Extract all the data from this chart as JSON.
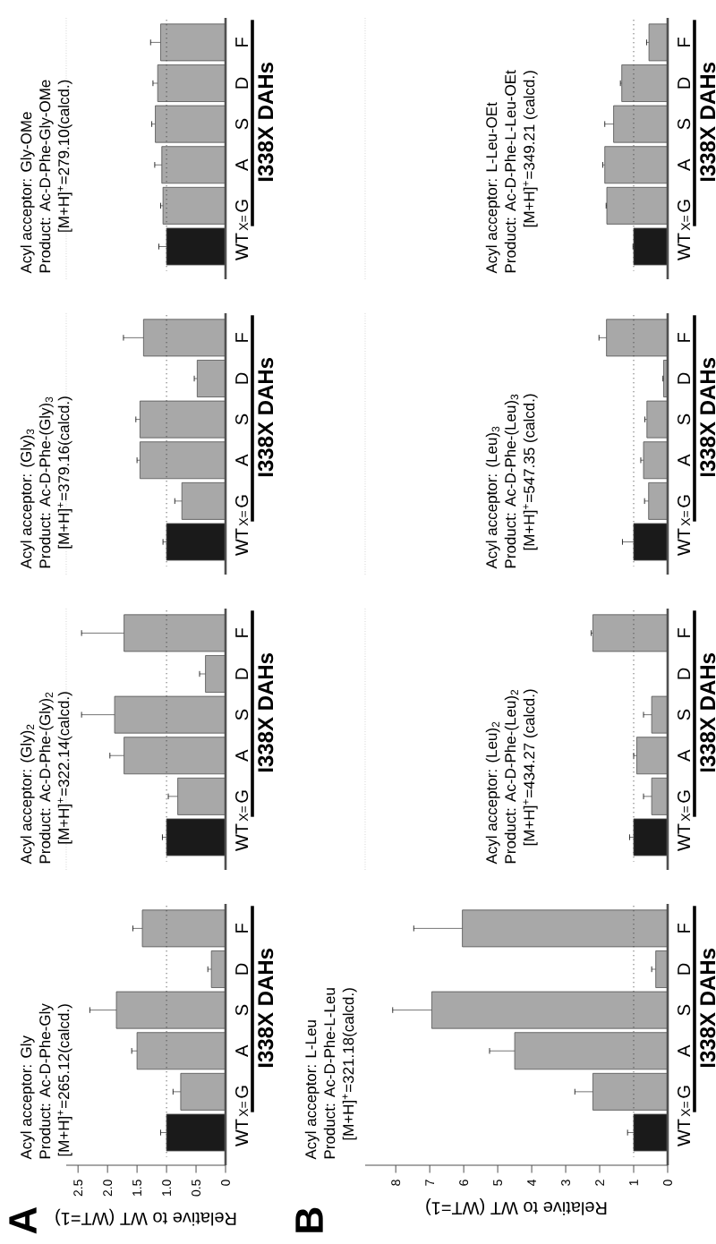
{
  "chart_data": [
    {
      "type": "bar",
      "orientation": "horizontal",
      "title": "Acyl acceptor: Gly",
      "subtitle": "Product: Ac-D-Phe-Gly",
      "ylabel": "I338X DAHs",
      "xlabel": "Relative to WT (WT=1)",
      "annotations": [
        "[M+H]$^{+}$=265.12(calcd.)",
        "X=",
        "A"
      ],
      "categories": [
        "F",
        "D",
        "S",
        "A",
        "G",
        "WT"
      ],
      "values": [
        1.41,
        0.24,
        1.85,
        1.5,
        0.76,
        1.0
      ],
      "errors": [
        0.16,
        0.06,
        0.45,
        0.09,
        0.13,
        0.1
      ],
      "colors": [
        "#a8a8a8",
        "#a8a8a8",
        "#a8a8a8",
        "#a8a8a8",
        "#a8a8a8",
        "#1a1a1a"
      ],
      "xlim": [
        2.7,
        0
      ],
      "xticks": [
        {
          "value": 0,
          "label": "0"
        },
        {
          "value": 0.5,
          "label": "0.5"
        },
        {
          "value": 1,
          "label": "1.0"
        },
        {
          "value": 1.5,
          "label": "1.5"
        },
        {
          "value": 2,
          "label": "2.0"
        },
        {
          "value": 2.5,
          "label": "2.5"
        }
      ],
      "ref_lines": [
        {
          "axis": "x",
          "value": 1,
          "line_style": "dotted",
          "color": "#333333"
        }
      ]
    },
    {
      "type": "bar",
      "orientation": "horizontal",
      "title": "Acyl acceptor: (Gly)$_{2}$",
      "subtitle": "Product: Ac-D-Phe-(Gly)$_{2}$",
      "ylabel": "I338X DAHs",
      "annotations": [
        "[M+H]$^{+}$=322.14(calcd.)",
        "X="
      ],
      "categories": [
        "F",
        "D",
        "S",
        "A",
        "G",
        "WT"
      ],
      "values": [
        1.72,
        0.34,
        1.88,
        1.72,
        0.81,
        1.0
      ],
      "errors": [
        0.72,
        0.1,
        0.56,
        0.24,
        0.16,
        0.07
      ],
      "colors": [
        "#a8a8a8",
        "#a8a8a8",
        "#a8a8a8",
        "#a8a8a8",
        "#a8a8a8",
        "#1a1a1a"
      ],
      "xlim": [
        2.7,
        0
      ],
      "tick_labels": "y",
      "ref_lines": [
        {
          "axis": "x",
          "value": 1,
          "line_style": "dotted",
          "color": "#333333"
        }
      ]
    },
    {
      "type": "bar",
      "orientation": "horizontal",
      "title": "Acyl acceptor: (Gly)$_{3}$",
      "subtitle": "Product: Ac-D-Phe-(Gly)$_{3}$",
      "ylabel": "I338X DAHs",
      "annotations": [
        "[M+H]$^{+}$=379.16(calcd.)",
        "X="
      ],
      "categories": [
        "F",
        "D",
        "S",
        "A",
        "G",
        "WT"
      ],
      "values": [
        1.39,
        0.48,
        1.45,
        1.45,
        0.74,
        1.0
      ],
      "errors": [
        0.34,
        0.05,
        0.07,
        0.05,
        0.12,
        0.06
      ],
      "colors": [
        "#a8a8a8",
        "#a8a8a8",
        "#a8a8a8",
        "#a8a8a8",
        "#a8a8a8",
        "#1a1a1a"
      ],
      "xlim": [
        2.7,
        0
      ],
      "tick_labels": "y",
      "ref_lines": [
        {
          "axis": "x",
          "value": 1,
          "line_style": "dotted",
          "color": "#333333"
        }
      ]
    },
    {
      "type": "bar",
      "orientation": "horizontal",
      "title": "Acyl acceptor: Gly-OMe",
      "subtitle": "Product: Ac-D-Phe-Gly-OMe",
      "ylabel": "I338X DAHs",
      "annotations": [
        "[M+H]$^{+}$=279.10(calcd.)",
        "X="
      ],
      "categories": [
        "F",
        "D",
        "S",
        "A",
        "G",
        "WT"
      ],
      "values": [
        1.1,
        1.15,
        1.19,
        1.08,
        1.06,
        1.0
      ],
      "errors": [
        0.17,
        0.08,
        0.06,
        0.12,
        0.04,
        0.13
      ],
      "colors": [
        "#a8a8a8",
        "#a8a8a8",
        "#a8a8a8",
        "#a8a8a8",
        "#a8a8a8",
        "#1a1a1a"
      ],
      "xlim": [
        2.7,
        0
      ],
      "tick_labels": "y",
      "ref_lines": [
        {
          "axis": "x",
          "value": 1,
          "line_style": "dotted",
          "color": "#333333"
        }
      ]
    },
    {
      "type": "bar",
      "orientation": "horizontal",
      "title": "Acyl acceptor: L-Leu",
      "subtitle": "Product: Ac-D-Phe-L-Leu",
      "ylabel": "I338X DAHs",
      "xlabel": "Relative to WT (WT=1)",
      "annotations": [
        "[M+H]$^{+}$=321.18(calcd.)",
        "X=",
        "B"
      ],
      "categories": [
        "F",
        "D",
        "S",
        "A",
        "G",
        "WT"
      ],
      "values": [
        6.04,
        0.35,
        6.94,
        4.5,
        2.2,
        1.0
      ],
      "errors": [
        1.43,
        0.12,
        1.15,
        0.74,
        0.53,
        0.18
      ],
      "colors": [
        "#a8a8a8",
        "#a8a8a8",
        "#a8a8a8",
        "#a8a8a8",
        "#a8a8a8",
        "#1a1a1a"
      ],
      "xlim": [
        8.9,
        0
      ],
      "xticks": [
        0,
        1,
        2,
        3,
        4,
        5,
        6,
        7,
        8
      ],
      "ref_lines": [
        {
          "axis": "x",
          "value": 1,
          "line_style": "dotted",
          "color": "#333333"
        }
      ]
    },
    {
      "type": "bar",
      "orientation": "horizontal",
      "title": "Acyl acceptor: (Leu)$_{2}$",
      "subtitle": "Product: Ac-D-Phe-(Leu)$_{2}$",
      "ylabel": "I338X DAHs",
      "annotations": [
        "[M+H]$^{+}$=434.27 (calcd.)",
        "X="
      ],
      "categories": [
        "F",
        "D",
        "S",
        "A",
        "G",
        "WT"
      ],
      "values": [
        2.2,
        0,
        0.47,
        0.91,
        0.47,
        1.0
      ],
      "errors": [
        0.05,
        null,
        0.24,
        0.09,
        0.24,
        0.12
      ],
      "colors": [
        "#a8a8a8",
        "#a8a8a8",
        "#a8a8a8",
        "#a8a8a8",
        "#a8a8a8",
        "#1a1a1a"
      ],
      "xlim": [
        8.9,
        0
      ],
      "tick_labels": "y",
      "ref_lines": [
        {
          "axis": "x",
          "value": 1,
          "line_style": "dotted",
          "color": "#333333"
        }
      ]
    },
    {
      "type": "bar",
      "orientation": "horizontal",
      "title": "Acyl acceptor: (Leu)$_{3}$",
      "subtitle": "Product: Ac-D-Phe-(Leu)$_{3}$",
      "ylabel": "I338X DAHs",
      "annotations": [
        "[M+H]$^{+}$=547.35 (calcd.)",
        "X="
      ],
      "categories": [
        "F",
        "D",
        "S",
        "A",
        "G",
        "WT"
      ],
      "values": [
        1.8,
        0.12,
        0.61,
        0.71,
        0.56,
        1.0
      ],
      "errors": [
        0.22,
        0.02,
        0.06,
        0.08,
        0.12,
        0.33
      ],
      "colors": [
        "#a8a8a8",
        "#a8a8a8",
        "#a8a8a8",
        "#a8a8a8",
        "#a8a8a8",
        "#1a1a1a"
      ],
      "xlim": [
        8.9,
        0
      ],
      "tick_labels": "y",
      "ref_lines": [
        {
          "axis": "x",
          "value": 1,
          "line_style": "dotted",
          "color": "#333333"
        }
      ]
    },
    {
      "type": "bar",
      "orientation": "horizontal",
      "title": "Acyl acceptor: L-Leu-OEt",
      "subtitle": "Product: Ac-D-Phe-L-Leu-OEt",
      "ylabel": "I338X DAHs",
      "annotations": [
        "[M+H]$^{+}$=349.21 (calcd.)",
        "X="
      ],
      "categories": [
        "F",
        "D",
        "S",
        "A",
        "G",
        "WT"
      ],
      "values": [
        0.55,
        1.35,
        1.59,
        1.85,
        1.79,
        1.0
      ],
      "errors": [
        0.07,
        0.04,
        0.26,
        0.06,
        0.02,
        0.02
      ],
      "colors": [
        "#a8a8a8",
        "#a8a8a8",
        "#a8a8a8",
        "#a8a8a8",
        "#a8a8a8",
        "#1a1a1a"
      ],
      "xlim": [
        8.9,
        0
      ],
      "tick_labels": "y",
      "ref_lines": [
        {
          "axis": "x",
          "value": 1,
          "line_style": "dotted",
          "color": "#333333"
        }
      ]
    }
  ]
}
